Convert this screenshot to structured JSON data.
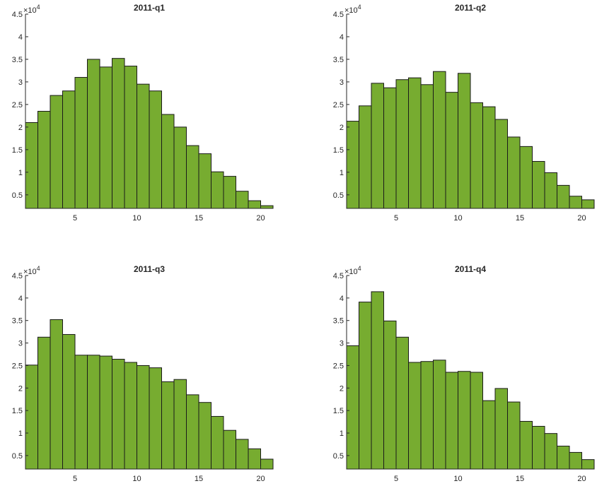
{
  "chart_data": [
    {
      "type": "bar",
      "title": "2011-q1",
      "bar_color": "#77AC30",
      "edge_color": "#1a1a1a",
      "x_values": [
        1,
        2,
        3,
        4,
        5,
        6,
        7,
        8,
        9,
        10,
        11,
        12,
        13,
        14,
        15,
        16,
        17,
        18,
        19,
        20
      ],
      "values": [
        21000,
        23500,
        27000,
        28000,
        31000,
        35000,
        33300,
        35200,
        33500,
        29500,
        28000,
        22800,
        20000,
        15900,
        14100,
        10100,
        9100,
        5800,
        3700,
        2600
      ],
      "xlim": [
        1,
        21
      ],
      "ylim": [
        2000,
        45000
      ],
      "xticks": [
        5,
        10,
        15,
        20
      ],
      "xtick_labels": [
        "5",
        "10",
        "15",
        "20"
      ],
      "yticks": [
        5000,
        10000,
        15000,
        20000,
        25000,
        30000,
        35000,
        40000,
        45000
      ],
      "ytick_labels": [
        "0.5",
        "1",
        "1.5",
        "2",
        "2.5",
        "3",
        "3.5",
        "4",
        "4.5"
      ],
      "exponent_base": "×10",
      "exponent_power": "4"
    },
    {
      "type": "bar",
      "title": "2011-q2",
      "bar_color": "#77AC30",
      "edge_color": "#1a1a1a",
      "x_values": [
        1,
        2,
        3,
        4,
        5,
        6,
        7,
        8,
        9,
        10,
        11,
        12,
        13,
        14,
        15,
        16,
        17,
        18,
        19,
        20
      ],
      "values": [
        21300,
        24700,
        29700,
        28700,
        30500,
        30900,
        29400,
        32300,
        27700,
        31900,
        25400,
        24500,
        21700,
        17800,
        15700,
        12400,
        9900,
        7100,
        4700,
        3900
      ],
      "xlim": [
        1,
        21
      ],
      "ylim": [
        2000,
        45000
      ],
      "xticks": [
        5,
        10,
        15,
        20
      ],
      "xtick_labels": [
        "5",
        "10",
        "15",
        "20"
      ],
      "yticks": [
        5000,
        10000,
        15000,
        20000,
        25000,
        30000,
        35000,
        40000,
        45000
      ],
      "ytick_labels": [
        "0.5",
        "1",
        "1.5",
        "2",
        "2.5",
        "3",
        "3.5",
        "4",
        "4.5"
      ],
      "exponent_base": "×10",
      "exponent_power": "4"
    },
    {
      "type": "bar",
      "title": "2011-q3",
      "bar_color": "#77AC30",
      "edge_color": "#1a1a1a",
      "x_values": [
        1,
        2,
        3,
        4,
        5,
        6,
        7,
        8,
        9,
        10,
        11,
        12,
        13,
        14,
        15,
        16,
        17,
        18,
        19,
        20
      ],
      "values": [
        25100,
        31300,
        35200,
        31900,
        27300,
        27300,
        27100,
        26400,
        25700,
        25000,
        24500,
        21400,
        21900,
        18500,
        16800,
        13700,
        10600,
        8600,
        6500,
        4200
      ],
      "xlim": [
        1,
        21
      ],
      "ylim": [
        2000,
        45000
      ],
      "xticks": [
        5,
        10,
        15,
        20
      ],
      "xtick_labels": [
        "5",
        "10",
        "15",
        "20"
      ],
      "yticks": [
        5000,
        10000,
        15000,
        20000,
        25000,
        30000,
        35000,
        40000,
        45000
      ],
      "ytick_labels": [
        "0.5",
        "1",
        "1.5",
        "2",
        "2.5",
        "3",
        "3.5",
        "4",
        "4.5"
      ],
      "exponent_base": "×10",
      "exponent_power": "4"
    },
    {
      "type": "bar",
      "title": "2011-q4",
      "bar_color": "#77AC30",
      "edge_color": "#1a1a1a",
      "x_values": [
        1,
        2,
        3,
        4,
        5,
        6,
        7,
        8,
        9,
        10,
        11,
        12,
        13,
        14,
        15,
        16,
        17,
        18,
        19,
        20
      ],
      "values": [
        29400,
        39100,
        41400,
        34900,
        31300,
        25700,
        25900,
        26200,
        23500,
        23700,
        23500,
        17200,
        19900,
        16900,
        12600,
        11500,
        9900,
        7100,
        5700,
        4100
      ],
      "xlim": [
        1,
        21
      ],
      "ylim": [
        2000,
        45000
      ],
      "xticks": [
        5,
        10,
        15,
        20
      ],
      "xtick_labels": [
        "5",
        "10",
        "15",
        "20"
      ],
      "yticks": [
        5000,
        10000,
        15000,
        20000,
        25000,
        30000,
        35000,
        40000,
        45000
      ],
      "ytick_labels": [
        "0.5",
        "1",
        "1.5",
        "2",
        "2.5",
        "3",
        "3.5",
        "4",
        "4.5"
      ],
      "exponent_base": "×10",
      "exponent_power": "4"
    }
  ]
}
